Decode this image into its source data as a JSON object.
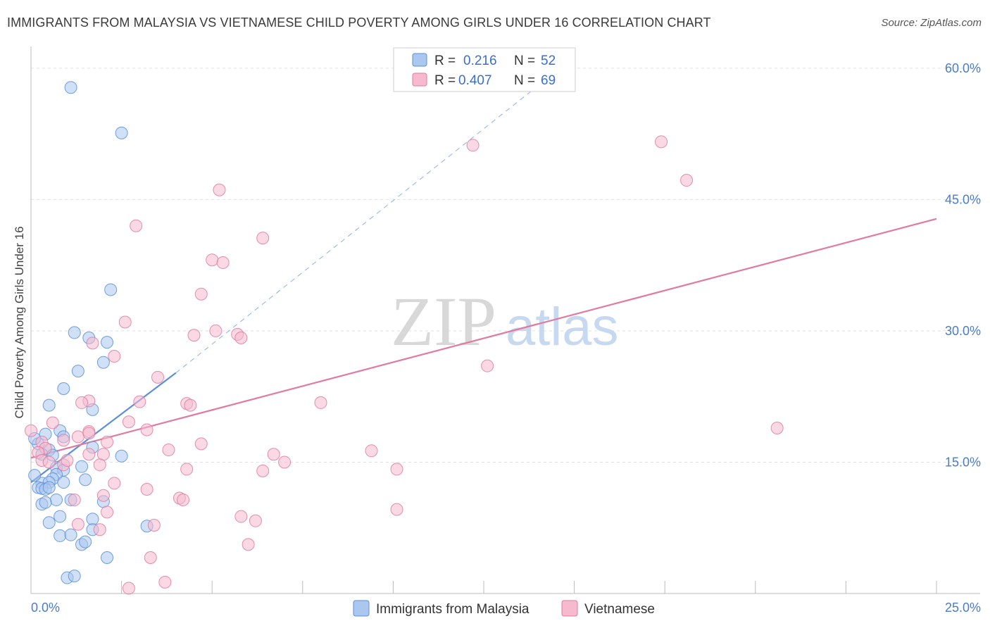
{
  "header": {
    "title": "IMMIGRANTS FROM MALAYSIA VS VIETNAMESE CHILD POVERTY AMONG GIRLS UNDER 16 CORRELATION CHART",
    "source": "Source: ZipAtlas.com"
  },
  "watermark": {
    "zip": "ZIP",
    "atlas": "atlas"
  },
  "legend_box": {
    "rows": [
      {
        "r_label": "R =",
        "r_value": "0.216",
        "n_label": "N =",
        "n_value": "52",
        "color": "#a9c7ef"
      },
      {
        "r_label": "R =",
        "r_value": "0.407",
        "n_label": "N =",
        "n_value": "69",
        "color": "#f6b9cd"
      }
    ]
  },
  "chart_data": {
    "type": "scatter",
    "title": "IMMIGRANTS FROM MALAYSIA VS VIETNAMESE CHILD POVERTY AMONG GIRLS UNDER 16 CORRELATION CHART",
    "ylabel": "Child Poverty Among Girls Under 16",
    "xlabel": "",
    "xlim": [
      0,
      25
    ],
    "ylim": [
      0,
      62
    ],
    "x_tick_labels": [
      {
        "value": 0,
        "label": "0.0%"
      },
      {
        "value": 25,
        "label": "25.0%"
      }
    ],
    "y_tick_labels": [
      {
        "value": 15,
        "label": "15.0%"
      },
      {
        "value": 30,
        "label": "30.0%"
      },
      {
        "value": 45,
        "label": "45.0%"
      },
      {
        "value": 60,
        "label": "60.0%"
      }
    ],
    "grid": true,
    "legend_position": "bottom-center",
    "series": [
      {
        "name": "Immigrants from Malaysia",
        "color": "#5b8fd9",
        "fill": "#a9c7ef",
        "points": [
          [
            1.1,
            57.8
          ],
          [
            2.5,
            52.6
          ],
          [
            2.2,
            34.7
          ],
          [
            1.2,
            29.8
          ],
          [
            1.6,
            29.2
          ],
          [
            2.1,
            28.7
          ],
          [
            2.0,
            26.4
          ],
          [
            1.3,
            25.4
          ],
          [
            0.9,
            23.4
          ],
          [
            0.5,
            21.5
          ],
          [
            1.7,
            21.0
          ],
          [
            0.4,
            18.2
          ],
          [
            0.8,
            18.6
          ],
          [
            0.9,
            17.9
          ],
          [
            0.2,
            17.1
          ],
          [
            1.7,
            16.7
          ],
          [
            0.5,
            16.4
          ],
          [
            0.3,
            15.9
          ],
          [
            0.6,
            15.8
          ],
          [
            2.5,
            15.7
          ],
          [
            0.1,
            17.7
          ],
          [
            0.7,
            14.4
          ],
          [
            0.9,
            14.1
          ],
          [
            1.4,
            14.5
          ],
          [
            0.7,
            13.6
          ],
          [
            0.6,
            13.1
          ],
          [
            1.5,
            13.0
          ],
          [
            0.3,
            12.6
          ],
          [
            0.5,
            12.7
          ],
          [
            0.9,
            12.7
          ],
          [
            0.1,
            13.5
          ],
          [
            0.2,
            12.1
          ],
          [
            0.3,
            12.0
          ],
          [
            0.4,
            11.9
          ],
          [
            0.5,
            12.1
          ],
          [
            0.7,
            10.7
          ],
          [
            1.1,
            10.7
          ],
          [
            2.0,
            10.5
          ],
          [
            0.3,
            10.2
          ],
          [
            0.4,
            10.4
          ],
          [
            0.8,
            8.8
          ],
          [
            0.5,
            8.1
          ],
          [
            1.7,
            8.5
          ],
          [
            3.2,
            7.7
          ],
          [
            1.7,
            7.3
          ],
          [
            0.8,
            6.6
          ],
          [
            1.1,
            6.7
          ],
          [
            1.4,
            5.6
          ],
          [
            1.5,
            5.9
          ],
          [
            2.1,
            4.1
          ],
          [
            1.0,
            1.8
          ],
          [
            1.2,
            2.0
          ]
        ],
        "trend": {
          "x0": 0.0,
          "y0": 12.7,
          "x1": 4.0,
          "y1": 25.2
        },
        "trend_extended": {
          "x0": 4.0,
          "y0": 25.2,
          "x1": 14.0,
          "y1": 58.0
        }
      },
      {
        "name": "Vietnamese",
        "color": "#e07aa0",
        "fill": "#f6b9cd",
        "points": [
          [
            12.2,
            51.2
          ],
          [
            17.4,
            51.6
          ],
          [
            18.1,
            47.2
          ],
          [
            5.2,
            46.1
          ],
          [
            2.9,
            42.0
          ],
          [
            6.4,
            40.6
          ],
          [
            5.0,
            38.1
          ],
          [
            5.3,
            37.8
          ],
          [
            4.7,
            34.2
          ],
          [
            2.6,
            31.0
          ],
          [
            5.1,
            30.0
          ],
          [
            4.5,
            29.5
          ],
          [
            5.7,
            29.6
          ],
          [
            5.8,
            29.2
          ],
          [
            1.7,
            28.6
          ],
          [
            2.3,
            27.1
          ],
          [
            12.6,
            26.0
          ],
          [
            3.5,
            24.7
          ],
          [
            1.6,
            22.0
          ],
          [
            1.4,
            21.8
          ],
          [
            8.0,
            21.8
          ],
          [
            3.0,
            21.9
          ],
          [
            4.3,
            21.7
          ],
          [
            4.4,
            21.5
          ],
          [
            0.6,
            19.5
          ],
          [
            0.0,
            18.6
          ],
          [
            2.7,
            19.6
          ],
          [
            1.6,
            18.5
          ],
          [
            3.2,
            18.7
          ],
          [
            20.6,
            18.9
          ],
          [
            1.3,
            17.9
          ],
          [
            0.9,
            17.5
          ],
          [
            0.3,
            17.3
          ],
          [
            1.6,
            18.3
          ],
          [
            2.1,
            17.3
          ],
          [
            4.7,
            17.1
          ],
          [
            0.4,
            16.6
          ],
          [
            0.2,
            16.1
          ],
          [
            2.0,
            15.9
          ],
          [
            1.6,
            15.9
          ],
          [
            3.8,
            16.4
          ],
          [
            9.4,
            16.3
          ],
          [
            6.7,
            15.9
          ],
          [
            0.3,
            15.2
          ],
          [
            0.5,
            15.0
          ],
          [
            0.9,
            14.7
          ],
          [
            1.0,
            15.2
          ],
          [
            1.9,
            14.7
          ],
          [
            7.0,
            15.0
          ],
          [
            4.3,
            14.2
          ],
          [
            6.4,
            14.0
          ],
          [
            10.1,
            14.2
          ],
          [
            2.3,
            12.6
          ],
          [
            3.2,
            11.9
          ],
          [
            2.0,
            11.2
          ],
          [
            4.1,
            10.9
          ],
          [
            4.2,
            10.7
          ],
          [
            1.2,
            10.7
          ],
          [
            10.1,
            9.6
          ],
          [
            2.1,
            9.3
          ],
          [
            5.8,
            8.8
          ],
          [
            6.2,
            8.3
          ],
          [
            1.3,
            7.9
          ],
          [
            3.4,
            7.8
          ],
          [
            1.9,
            7.3
          ],
          [
            6.0,
            5.6
          ],
          [
            3.3,
            4.1
          ],
          [
            3.7,
            1.3
          ],
          [
            2.7,
            0.6
          ]
        ],
        "trend": {
          "x0": 0.0,
          "y0": 15.5,
          "x1": 25.0,
          "y1": 42.8
        }
      }
    ]
  },
  "bottom_legend": {
    "items": [
      {
        "label": "Immigrants from Malaysia",
        "color": "#a9c7ef",
        "stroke": "#5b8fd9"
      },
      {
        "label": "Vietnamese",
        "color": "#f6b9cd",
        "stroke": "#e07aa0"
      }
    ]
  }
}
